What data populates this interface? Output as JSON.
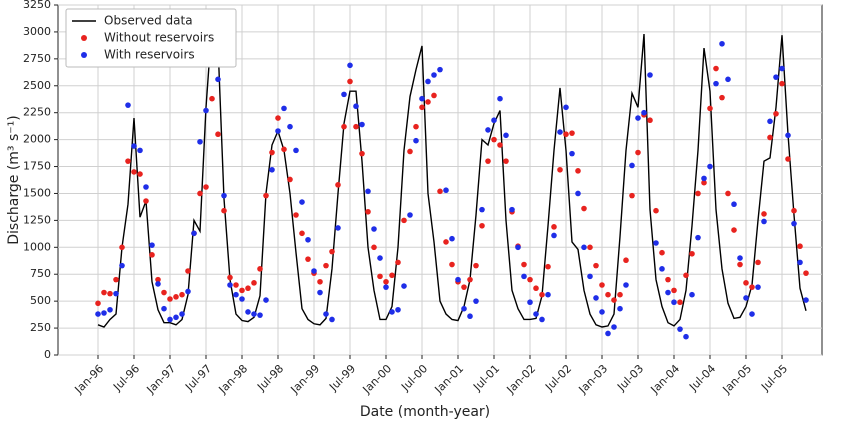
{
  "chart_data": {
    "type": "line",
    "xlabel": "Date (month-year)",
    "ylabel": "Discharge (m³ s⁻¹)",
    "categories": [
      "Jan-96",
      null,
      null,
      null,
      null,
      null,
      "Jul-96",
      null,
      null,
      null,
      null,
      null,
      "Jan-97",
      null,
      null,
      null,
      null,
      null,
      "Jul-97",
      null,
      null,
      null,
      null,
      null,
      "Jan-98",
      null,
      null,
      null,
      null,
      null,
      "Jul-98",
      null,
      null,
      null,
      null,
      null,
      "Jan-99",
      null,
      null,
      null,
      null,
      null,
      "Jul-99",
      null,
      null,
      null,
      null,
      null,
      "Jan-00",
      null,
      null,
      null,
      null,
      null,
      "Jul-00",
      null,
      null,
      null,
      null,
      null,
      "Jan-01",
      null,
      null,
      null,
      null,
      null,
      "Jul-01",
      null,
      null,
      null,
      null,
      null,
      "Jan-02",
      null,
      null,
      null,
      null,
      null,
      "Jul-02",
      null,
      null,
      null,
      null,
      null,
      "Jan-03",
      null,
      null,
      null,
      null,
      null,
      "Jul-03",
      null,
      null,
      null,
      null,
      null,
      "Jan-04",
      null,
      null,
      null,
      null,
      null,
      "Jul-04",
      null,
      null,
      null,
      null,
      null,
      "Jan-05",
      null,
      null,
      null,
      null,
      null,
      "Jul-05",
      null,
      null,
      null,
      null
    ],
    "series": [
      {
        "name": "Observed data",
        "style": "line",
        "color": "#000000",
        "values": [
          280,
          260,
          330,
          380,
          1000,
          1400,
          2200,
          1280,
          1430,
          680,
          420,
          300,
          300,
          280,
          330,
          560,
          1250,
          1150,
          2300,
          3080,
          2880,
          1450,
          700,
          380,
          320,
          310,
          350,
          550,
          1500,
          1950,
          2080,
          1900,
          1500,
          950,
          430,
          330,
          290,
          280,
          340,
          800,
          1500,
          2150,
          2450,
          2450,
          1800,
          1000,
          600,
          330,
          330,
          450,
          1000,
          1900,
          2400,
          2650,
          2870,
          1500,
          1050,
          500,
          380,
          330,
          320,
          450,
          700,
          1300,
          2000,
          1950,
          2150,
          2270,
          1250,
          600,
          430,
          330,
          330,
          340,
          550,
          1200,
          1900,
          2480,
          1900,
          1050,
          980,
          600,
          380,
          280,
          260,
          270,
          380,
          1100,
          1900,
          2430,
          2300,
          2980,
          1350,
          700,
          450,
          300,
          270,
          330,
          600,
          1200,
          1900,
          2850,
          2450,
          1350,
          800,
          480,
          340,
          350,
          450,
          650,
          1250,
          1800,
          1830,
          2300,
          2970,
          2050,
          1300,
          620,
          410
        ]
      },
      {
        "name": "Without reservoirs",
        "style": "dot",
        "color": "#e8231f",
        "values": [
          480,
          580,
          570,
          700,
          1000,
          1800,
          1700,
          1680,
          1430,
          930,
          700,
          580,
          520,
          540,
          560,
          780,
          1130,
          1500,
          1560,
          2380,
          2050,
          1340,
          720,
          650,
          600,
          620,
          670,
          800,
          1480,
          1880,
          2200,
          1910,
          1630,
          1300,
          1130,
          890,
          760,
          680,
          830,
          960,
          1580,
          2120,
          2540,
          2120,
          1870,
          1330,
          1000,
          730,
          680,
          740,
          860,
          1250,
          1890,
          2120,
          2300,
          2350,
          2410,
          1520,
          1050,
          840,
          680,
          630,
          700,
          830,
          1200,
          1800,
          2000,
          1950,
          1800,
          1330,
          1010,
          840,
          700,
          620,
          560,
          820,
          1190,
          1720,
          2050,
          2060,
          1710,
          1360,
          1000,
          830,
          650,
          560,
          510,
          560,
          880,
          1480,
          1880,
          2230,
          2180,
          1340,
          950,
          700,
          600,
          490,
          740,
          940,
          1500,
          1600,
          2290,
          2660,
          2390,
          1500,
          1160,
          840,
          670,
          630,
          860,
          1310,
          2020,
          2240,
          2520,
          1820,
          1340,
          1010,
          760
        ]
      },
      {
        "name": "With reservoirs",
        "style": "dot",
        "color": "#1f2ee8",
        "values": [
          380,
          390,
          420,
          570,
          830,
          2320,
          1940,
          1900,
          1560,
          1020,
          660,
          430,
          330,
          350,
          380,
          590,
          1130,
          1980,
          2270,
          2700,
          2560,
          1480,
          650,
          560,
          520,
          400,
          380,
          370,
          510,
          1720,
          2080,
          2290,
          2120,
          1900,
          1420,
          1070,
          780,
          580,
          380,
          330,
          1180,
          2420,
          2690,
          2310,
          2140,
          1520,
          1170,
          900,
          630,
          400,
          420,
          640,
          1300,
          1990,
          2380,
          2540,
          2600,
          2650,
          1530,
          1080,
          700,
          430,
          360,
          500,
          1350,
          2090,
          2180,
          2380,
          2040,
          1350,
          1000,
          730,
          490,
          380,
          330,
          560,
          1110,
          2070,
          2300,
          1870,
          1500,
          1000,
          730,
          530,
          400,
          200,
          260,
          430,
          650,
          1760,
          2200,
          2250,
          2600,
          1040,
          800,
          580,
          490,
          240,
          170,
          560,
          1090,
          1640,
          1750,
          2520,
          2890,
          2560,
          1400,
          900,
          530,
          380,
          630,
          1240,
          2170,
          2580,
          2660,
          2040,
          1220,
          860,
          510
        ]
      }
    ],
    "ylim": [
      0,
      3250
    ],
    "yticks": [
      0,
      250,
      500,
      750,
      1000,
      1250,
      1500,
      1750,
      2000,
      2250,
      2500,
      2750,
      3000,
      3250
    ],
    "grid": true,
    "legend": "upper-left"
  }
}
